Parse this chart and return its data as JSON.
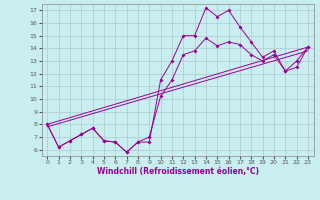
{
  "bg_color": "#c8eef0",
  "line_color": "#990099",
  "grid_color": "#b0c8d0",
  "xlabel": "Windchill (Refroidissement éolien,°C)",
  "ylabel_ticks": [
    6,
    7,
    8,
    9,
    10,
    11,
    12,
    13,
    14,
    15,
    16,
    17
  ],
  "xlabel_ticks": [
    0,
    1,
    2,
    3,
    4,
    5,
    6,
    7,
    8,
    9,
    10,
    11,
    12,
    13,
    14,
    15,
    16,
    17,
    18,
    19,
    20,
    21,
    22,
    23
  ],
  "xlim": [
    -0.5,
    23.5
  ],
  "ylim": [
    5.5,
    17.5
  ],
  "line0": {
    "x": [
      0,
      1,
      2,
      3,
      4,
      5,
      6,
      7,
      8,
      9,
      10,
      11,
      12,
      13,
      14,
      15,
      16,
      17,
      18,
      19,
      20,
      21,
      22,
      23
    ],
    "y": [
      8.0,
      6.2,
      6.7,
      7.2,
      7.7,
      6.7,
      6.6,
      5.8,
      6.6,
      6.6,
      11.5,
      13.0,
      15.0,
      15.0,
      17.2,
      16.5,
      17.0,
      15.7,
      14.5,
      13.3,
      13.8,
      12.2,
      12.5,
      14.1
    ]
  },
  "line1": {
    "x": [
      0,
      1,
      2,
      3,
      4,
      5,
      6,
      7,
      8,
      9,
      10,
      11,
      12,
      13,
      14,
      15,
      16,
      17,
      18,
      19,
      20,
      21,
      22,
      23
    ],
    "y": [
      8.0,
      6.2,
      6.7,
      7.2,
      7.7,
      6.7,
      6.6,
      5.8,
      6.6,
      7.0,
      10.2,
      11.5,
      13.5,
      13.8,
      14.8,
      14.2,
      14.5,
      14.3,
      13.5,
      13.0,
      13.5,
      12.2,
      13.0,
      14.1
    ]
  },
  "line2": {
    "x": [
      0,
      23
    ],
    "y": [
      8.0,
      14.1
    ]
  },
  "line3": {
    "x": [
      0,
      23
    ],
    "y": [
      8.0,
      14.1
    ]
  }
}
